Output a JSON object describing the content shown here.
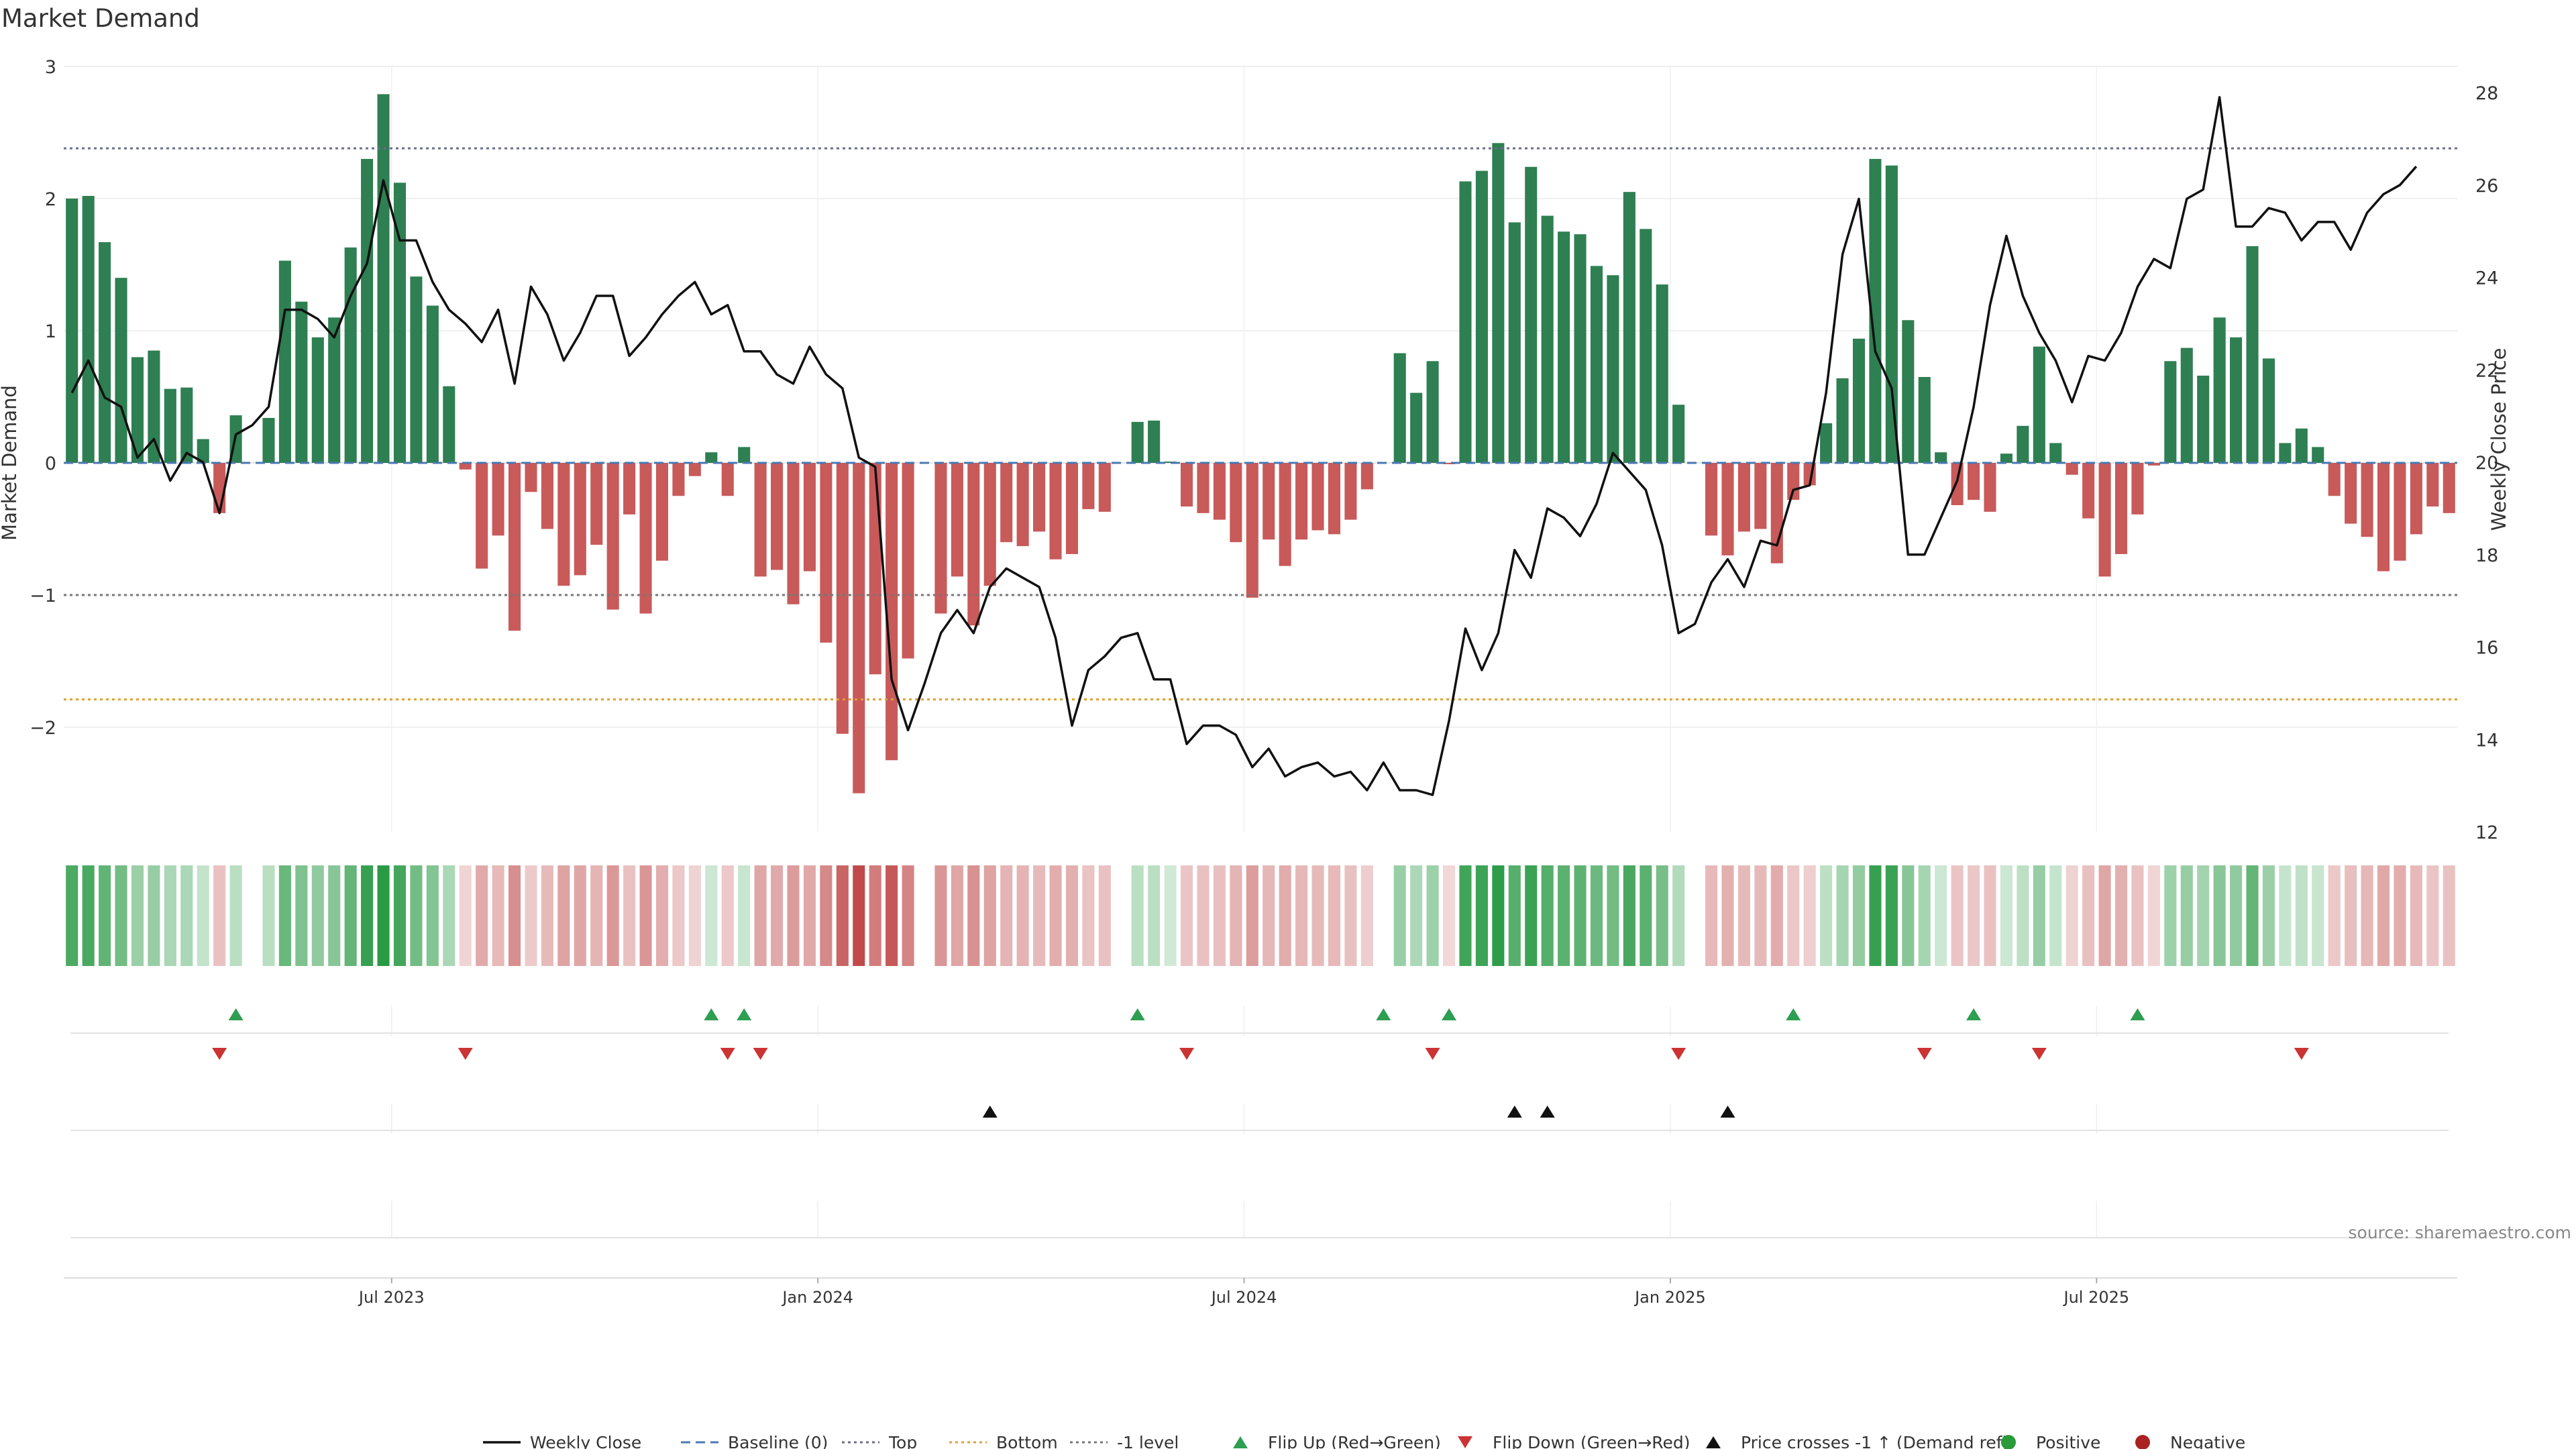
{
  "chart_data": {
    "type": "bar",
    "title": "Market Demand",
    "ylabel": "Market Demand",
    "y2label": "Weekly Close Price",
    "ylim": [
      -2.8,
      3.0
    ],
    "y2lim": [
      12,
      28.6
    ],
    "yticks": [
      3,
      2,
      1,
      0,
      -1,
      -2
    ],
    "ytick_labels": [
      "3",
      "2",
      "1",
      "0",
      "−1",
      "−2"
    ],
    "y2ticks": [
      28,
      26,
      24,
      22,
      20,
      18,
      16,
      14,
      12
    ],
    "y2tick_labels": [
      "28",
      "26",
      "24",
      "22",
      "20",
      "18",
      "16",
      "14",
      "12"
    ],
    "reference_lines": {
      "top": 2.38,
      "minus_one": -1.0,
      "bottom": -1.79,
      "baseline": 0
    },
    "x_ticks": [
      {
        "label": "Jul 2023",
        "week": 20
      },
      {
        "label": "Jan 2024",
        "week": 46
      },
      {
        "label": "Jul 2024",
        "week": 72
      },
      {
        "label": "Jan 2025",
        "week": 98
      },
      {
        "label": "Jul 2025",
        "week": 124
      }
    ],
    "series": [
      {
        "name": "Market Demand",
        "values": [
          2.0,
          2.02,
          1.67,
          1.4,
          0.8,
          0.85,
          0.56,
          0.57,
          0.18,
          -0.38,
          0.36,
          0.0,
          0.34,
          1.53,
          1.22,
          0.95,
          1.1,
          1.63,
          2.3,
          2.79,
          2.12,
          1.41,
          1.19,
          0.58,
          -0.05,
          -0.8,
          -0.55,
          -1.27,
          -0.22,
          -0.5,
          -0.93,
          -0.85,
          -0.62,
          -1.11,
          -0.39,
          -1.14,
          -0.74,
          -0.25,
          -0.1,
          0.08,
          -0.25,
          0.12,
          -0.86,
          -0.81,
          -1.07,
          -0.82,
          -1.36,
          -2.05,
          -2.5,
          -1.6,
          -2.25,
          -1.48,
          0.0,
          -1.14,
          -0.86,
          -1.23,
          -0.93,
          -0.6,
          -0.63,
          -0.52,
          -0.73,
          -0.69,
          -0.35,
          -0.37,
          0.0,
          0.31,
          0.32,
          0.01,
          -0.33,
          -0.38,
          -0.43,
          -0.6,
          -1.02,
          -0.58,
          -0.78,
          -0.58,
          -0.51,
          -0.54,
          -0.43,
          -0.2,
          0.0,
          0.83,
          0.53,
          0.77,
          -0.01,
          2.13,
          2.21,
          2.42,
          1.82,
          2.24,
          1.87,
          1.75,
          1.73,
          1.49,
          1.42,
          2.05,
          1.77,
          1.35,
          0.44,
          0.0,
          -0.55,
          -0.7,
          -0.52,
          -0.5,
          -0.76,
          -0.28,
          -0.17,
          0.3,
          0.64,
          0.94,
          2.3,
          2.25,
          1.08,
          0.65,
          0.08,
          -0.32,
          -0.28,
          -0.37,
          0.07,
          0.28,
          0.88,
          0.15,
          -0.09,
          -0.42,
          -0.86,
          -0.69,
          -0.39,
          -0.02,
          0.77,
          0.87,
          0.66,
          1.1,
          0.95,
          1.64,
          0.79,
          0.15,
          0.26,
          0.12,
          -0.25,
          -0.46,
          -0.56,
          -0.82,
          -0.74,
          -0.54,
          -0.33,
          -0.38
        ]
      },
      {
        "name": "Weekly Close",
        "values": [
          21.5,
          22.2,
          21.4,
          21.2,
          20.1,
          20.5,
          19.6,
          20.2,
          20.0,
          18.9,
          20.6,
          20.8,
          21.2,
          23.3,
          23.3,
          23.1,
          22.7,
          23.6,
          24.3,
          26.1,
          24.8,
          24.8,
          23.9,
          23.3,
          23.0,
          22.6,
          23.3,
          21.7,
          23.8,
          23.2,
          22.2,
          22.8,
          23.6,
          23.6,
          22.3,
          22.7,
          23.2,
          23.6,
          23.9,
          23.2,
          23.4,
          22.4,
          22.4,
          21.9,
          21.7,
          22.5,
          21.9,
          21.6,
          20.1,
          19.9,
          15.3,
          14.2,
          15.2,
          16.3,
          16.8,
          16.3,
          17.3,
          17.7,
          17.5,
          17.3,
          16.2,
          14.3,
          15.5,
          15.8,
          16.2,
          16.3,
          15.3,
          15.3,
          13.9,
          14.3,
          14.3,
          14.1,
          13.4,
          13.8,
          13.2,
          13.4,
          13.5,
          13.2,
          13.3,
          12.9,
          13.5,
          12.9,
          12.9,
          12.8,
          14.4,
          16.4,
          15.5,
          16.3,
          18.1,
          17.5,
          19.0,
          18.8,
          18.4,
          19.1,
          20.2,
          19.8,
          19.4,
          18.2,
          16.3,
          16.5,
          17.4,
          17.9,
          17.3,
          18.3,
          18.2,
          19.4,
          19.5,
          21.5,
          24.5,
          25.7,
          22.4,
          21.6,
          18.0,
          18.0,
          18.8,
          19.6,
          21.2,
          23.4,
          24.9,
          23.6,
          22.8,
          22.2,
          21.3,
          22.3,
          22.2,
          22.8,
          23.8,
          24.4,
          24.2,
          25.7,
          25.9,
          27.9,
          25.1,
          25.1,
          25.5,
          25.4,
          24.8,
          25.2,
          25.2,
          24.6,
          25.4,
          25.8,
          26.0,
          26.4
        ]
      }
    ],
    "signals": {
      "flip_up": [
        10,
        39,
        41,
        65,
        80,
        84,
        105,
        116,
        126
      ],
      "flip_down": [
        9,
        24,
        40,
        42,
        68,
        83,
        98,
        113,
        120,
        136
      ],
      "price_crosses": [
        56,
        88,
        90,
        101
      ]
    },
    "legend": [
      {
        "label": "Weekly Close",
        "kind": "line",
        "color": "#111111"
      },
      {
        "label": "Baseline (0)",
        "kind": "dash",
        "color": "#4a78b0"
      },
      {
        "label": "Top",
        "kind": "dot",
        "color": "#6c6c8c"
      },
      {
        "label": "Bottom",
        "kind": "dot",
        "color": "#e0a030"
      },
      {
        "label": "-1 level",
        "kind": "dot",
        "color": "#777777"
      },
      {
        "label": "Flip Up (Red→Green)",
        "kind": "tri-up",
        "color": "#2e9e50"
      },
      {
        "label": "Flip Down (Green→Red)",
        "kind": "tri-down",
        "color": "#cc3333"
      },
      {
        "label": "Price crosses -1 ↑ (Demand ref)",
        "kind": "tri-up",
        "color": "#111111"
      },
      {
        "label": "Positive",
        "kind": "dot-marker",
        "color": "#2a9a3a"
      },
      {
        "label": "Negative",
        "kind": "dot-marker",
        "color": "#aa2222"
      }
    ],
    "source": "source: sharemaestro.com"
  },
  "colors": {
    "positive": "#2e7f52",
    "negative": "#c85a5a",
    "price": "#111111",
    "baseline": "#4a78b0",
    "top": "#6c6c8c",
    "bottom": "#e0a030",
    "minus_one": "#777777"
  }
}
